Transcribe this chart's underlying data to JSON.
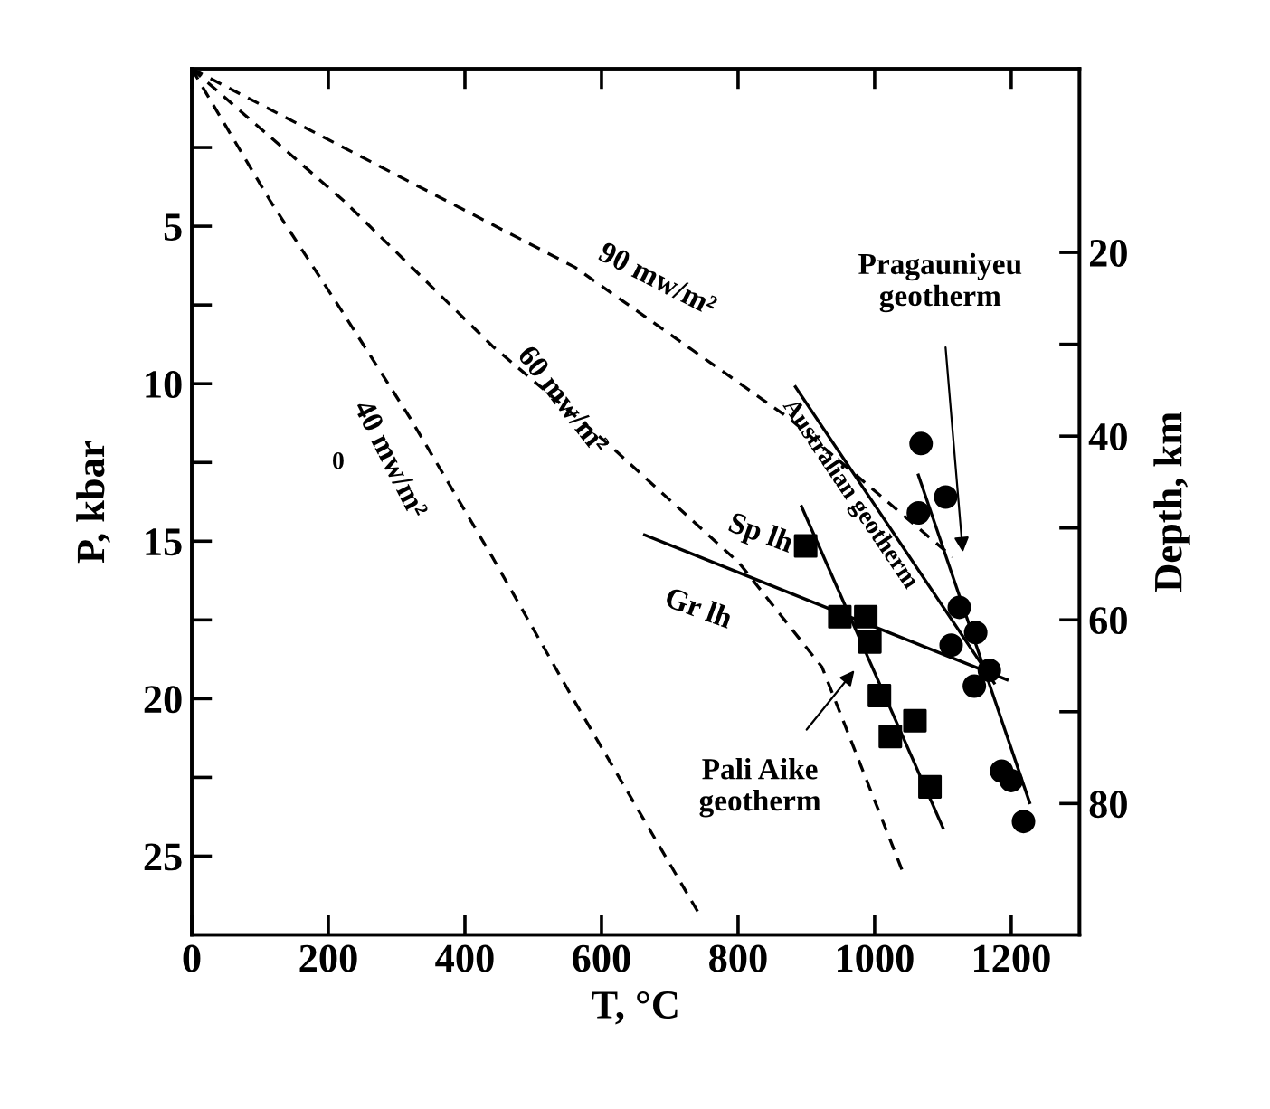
{
  "chart_data": {
    "type": "line",
    "xlabel": "T, °C",
    "ylabel": "P, kbar",
    "y2label": "Depth, km",
    "xlim": [
      0,
      1300
    ],
    "xticks": [
      0,
      200,
      400,
      600,
      800,
      1000,
      1200
    ],
    "ylim": [
      27.5,
      0
    ],
    "yticks": [
      {
        "value": 2.5,
        "label": null
      },
      5,
      {
        "value": 7.5,
        "label": null
      },
      10,
      {
        "value": 12.5,
        "label": null
      },
      15,
      {
        "value": 17.5,
        "label": null
      },
      20,
      {
        "value": 22.5,
        "label": null
      },
      25
    ],
    "y2lim": [
      94.3,
      0
    ],
    "y2ticks": [
      20,
      {
        "value": 30,
        "label": null
      },
      40,
      {
        "value": 50,
        "label": null
      },
      60,
      {
        "value": 70,
        "label": null
      },
      80
    ],
    "grid": false,
    "legend": false,
    "series": [
      {
        "type": "line",
        "line_style": "dashed",
        "color": "#000000",
        "x": [
          0,
          320,
          561,
          875,
          1114
        ],
        "values": [
          0,
          3.6,
          6.3,
          11.1,
          15.5
        ]
      },
      {
        "type": "line",
        "line_style": "dashed",
        "color": "#000000",
        "x": [
          0,
          223,
          440,
          609,
          802,
          923,
          1043
        ],
        "values": [
          0,
          4.2,
          8.8,
          11.9,
          15.7,
          19.0,
          25.6
        ]
      },
      {
        "type": "line",
        "line_style": "dashed",
        "color": "#000000",
        "x": [
          0,
          115,
          223,
          320,
          440,
          561,
          742
        ],
        "values": [
          0,
          4.2,
          7.8,
          11.1,
          15.5,
          20.1,
          26.8
        ]
      },
      {
        "type": "line",
        "line_style": "solid",
        "color": "#000000",
        "x": [
          884,
          1175
        ],
        "values": [
          10.1,
          19.5
        ]
      },
      {
        "type": "line",
        "line_style": "solid",
        "color": "#000000",
        "x": [
          663,
          1194
        ],
        "values": [
          14.8,
          19.4
        ]
      },
      {
        "type": "line",
        "line_style": "solid",
        "color": "#000000",
        "x": [
          893,
          1100
        ],
        "values": [
          13.9,
          24.1
        ]
      },
      {
        "type": "line",
        "line_style": "solid",
        "color": "#000000",
        "x": [
          1064,
          1227
        ],
        "values": [
          12.9,
          23.3
        ]
      },
      {
        "type": "scatter",
        "marker": "square",
        "color": "#000000",
        "x": [
          899,
          949,
          987,
          993,
          1007,
          1059,
          1023,
          1081
        ],
        "values": [
          15.15,
          17.4,
          17.4,
          18.2,
          19.9,
          20.7,
          21.2,
          22.8
        ]
      },
      {
        "type": "scatter",
        "marker": "circle",
        "color": "#000000",
        "x": [
          1068,
          1104,
          1064,
          1124,
          1148,
          1112,
          1168,
          1146,
          1186,
          1200,
          1218
        ],
        "values": [
          11.9,
          13.6,
          14.1,
          17.1,
          17.9,
          18.3,
          19.1,
          19.6,
          22.3,
          22.6,
          23.9
        ]
      }
    ],
    "annotations": [
      {
        "text": "90 mw/m²",
        "x": 561,
        "y": 6.3
      },
      {
        "text": "60 mw/m²",
        "x": 440,
        "y": 8.8
      },
      {
        "text": "40 mw/m²",
        "x": 320,
        "y": 11.1
      },
      {
        "text": "Australian geotherm",
        "x": 890,
        "y": 10.3
      },
      {
        "text": "Sp lh",
        "x": 780,
        "y": 15.0
      },
      "Gr lh",
      "Pragauniyeu geotherm",
      "Pali Aike geotherm",
      "0"
    ]
  }
}
